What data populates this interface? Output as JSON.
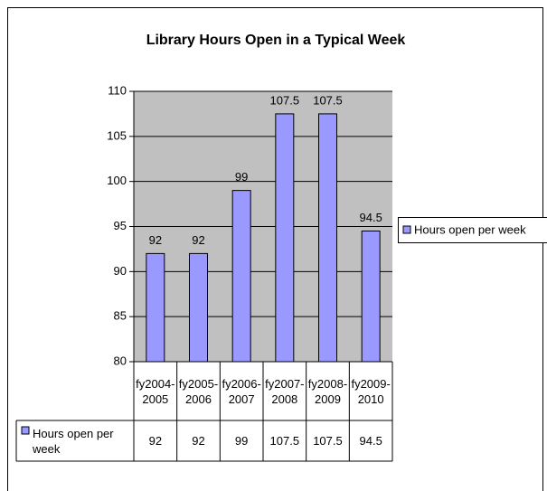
{
  "chart_data": {
    "type": "bar",
    "title": "Library Hours Open in a Typical Week",
    "categories": [
      "fy2004-2005",
      "fy2005-2006",
      "fy2006-2007",
      "fy2007-2008",
      "fy2008-2009",
      "fy2009-2010"
    ],
    "series": [
      {
        "name": "Hours open per week",
        "color": "#9999ff",
        "values": [
          92,
          92,
          99,
          107.5,
          107.5,
          94.5
        ]
      }
    ],
    "ylim": [
      80,
      110
    ],
    "yticks": [
      80,
      85,
      90,
      95,
      100,
      105,
      110
    ],
    "grid": true,
    "legend": "right",
    "data_table": true
  }
}
